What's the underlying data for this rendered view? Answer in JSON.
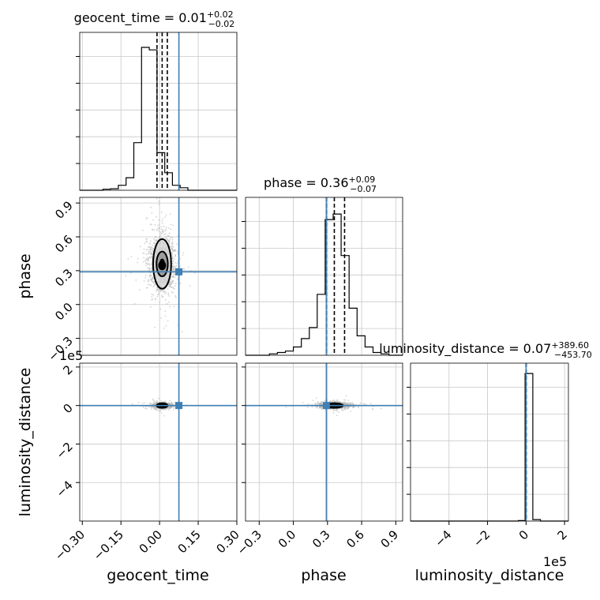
{
  "figure": {
    "type": "corner-plot"
  },
  "colors": {
    "truth": "#3f7fb4",
    "hist": "#000000",
    "grid": "#c8c8c8",
    "samples": "#b0b0b0"
  },
  "chart_data": [
    {
      "type": "bar",
      "panel": "geocent_time-hist",
      "title": {
        "main": "geocent_time = 0.01",
        "sup": "+0.02",
        "sub": "−0.02"
      },
      "xlim": [
        -0.31,
        0.3
      ],
      "bin_edges": [
        -0.31,
        -0.28,
        -0.25,
        -0.22,
        -0.19,
        -0.16,
        -0.13,
        -0.1,
        -0.07,
        -0.04,
        -0.01,
        0.02,
        0.05,
        0.08,
        0.11,
        0.14,
        0.17,
        0.2,
        0.23,
        0.26,
        0.3
      ],
      "values": [
        0,
        0,
        0,
        0.4,
        0.6,
        2,
        5,
        19,
        57,
        56,
        15,
        7,
        2,
        1,
        0,
        0,
        0,
        0,
        0,
        0
      ],
      "ylim": [
        0,
        63
      ],
      "quantiles": [
        -0.01,
        0.01,
        0.03
      ],
      "truth": 0.075
    },
    {
      "type": "scatter",
      "panel": "phase-vs-geocent_time",
      "x_param": "geocent_time",
      "y_param": "phase",
      "xlim": [
        -0.31,
        0.3
      ],
      "ylim": [
        -0.45,
        0.95
      ],
      "center": [
        0.01,
        0.36
      ],
      "contour_levels": [
        {
          "rx": 0.035,
          "ry": 0.22
        },
        {
          "rx": 0.022,
          "ry": 0.11
        },
        {
          "rx": 0.008,
          "ry": 0.04
        }
      ],
      "truth": [
        0.075,
        0.29
      ]
    },
    {
      "type": "bar",
      "panel": "phase-hist",
      "title": {
        "main": "phase = 0.36",
        "sup": "+0.09",
        "sub": "−0.07"
      },
      "xlim": [
        -0.42,
        0.96
      ],
      "bin_edges": [
        -0.42,
        -0.35,
        -0.28,
        -0.21,
        -0.14,
        -0.07,
        0.0,
        0.07,
        0.14,
        0.21,
        0.28,
        0.35,
        0.42,
        0.49,
        0.56,
        0.63,
        0.7,
        0.77,
        0.84,
        0.91,
        0.96
      ],
      "values": [
        0,
        0,
        0,
        0.5,
        1,
        1.5,
        3,
        6,
        10,
        22,
        49,
        51,
        36,
        17,
        7,
        3,
        1,
        0.5,
        0,
        0
      ],
      "ylim": [
        0,
        57
      ],
      "quantiles": [
        0.29,
        0.36,
        0.45
      ],
      "truth": 0.29
    },
    {
      "type": "scatter",
      "panel": "luminosity_distance-vs-geocent_time",
      "x_param": "geocent_time",
      "y_param": "luminosity_distance",
      "xlim": [
        -0.31,
        0.3
      ],
      "ylim": [
        -600000,
        220000
      ],
      "center": [
        0.01,
        0
      ],
      "truth": [
        0.075,
        0
      ]
    },
    {
      "type": "scatter",
      "panel": "luminosity_distance-vs-phase",
      "x_param": "phase",
      "y_param": "luminosity_distance",
      "xlim": [
        -0.42,
        0.96
      ],
      "ylim": [
        -600000,
        220000
      ],
      "center": [
        0.36,
        0
      ],
      "truth": [
        0.29,
        0
      ]
    },
    {
      "type": "bar",
      "panel": "luminosity_distance-hist",
      "title": {
        "main": "luminosity_distance = 0.07",
        "sup": "+389.60",
        "sub": "−453.70"
      },
      "xlim": [
        -600000,
        220000
      ],
      "bin_edges": [
        -600000,
        -560000,
        -520000,
        -480000,
        -440000,
        -400000,
        -360000,
        -320000,
        -280000,
        -240000,
        -200000,
        -160000,
        -120000,
        -80000,
        -40000,
        -5000,
        35000,
        75000,
        115000,
        155000,
        220000
      ],
      "values": [
        0,
        0,
        0,
        0,
        0,
        0,
        0,
        0,
        0,
        0,
        0,
        0,
        0,
        0,
        0.3,
        100,
        1,
        0,
        0,
        0
      ],
      "ylim": [
        0,
        107
      ],
      "quantiles": [
        -450,
        0,
        390
      ],
      "truth": 0
    }
  ],
  "axes": {
    "x_labels": [
      "geocent_time",
      "phase",
      "luminosity_distance"
    ],
    "y_labels": [
      "phase",
      "luminosity_distance"
    ],
    "geocent_ticks": [
      {
        "v": -0.3,
        "label": "−0.30"
      },
      {
        "v": -0.15,
        "label": "−0.15"
      },
      {
        "v": 0.0,
        "label": "0.00"
      },
      {
        "v": 0.15,
        "label": "0.15"
      },
      {
        "v": 0.3,
        "label": "0.30"
      }
    ],
    "phase_ticks": [
      {
        "v": -0.3,
        "label": "−0.3"
      },
      {
        "v": 0.0,
        "label": "0.0"
      },
      {
        "v": 0.3,
        "label": "0.3"
      },
      {
        "v": 0.6,
        "label": "0.6"
      },
      {
        "v": 0.9,
        "label": "0.9"
      }
    ],
    "lumdist_ticks": [
      {
        "v": -400000,
        "label": "−4"
      },
      {
        "v": -200000,
        "label": "−2"
      },
      {
        "v": 0,
        "label": "0"
      },
      {
        "v": 200000,
        "label": "2"
      }
    ],
    "lumdist_multiplier": "1e5"
  }
}
